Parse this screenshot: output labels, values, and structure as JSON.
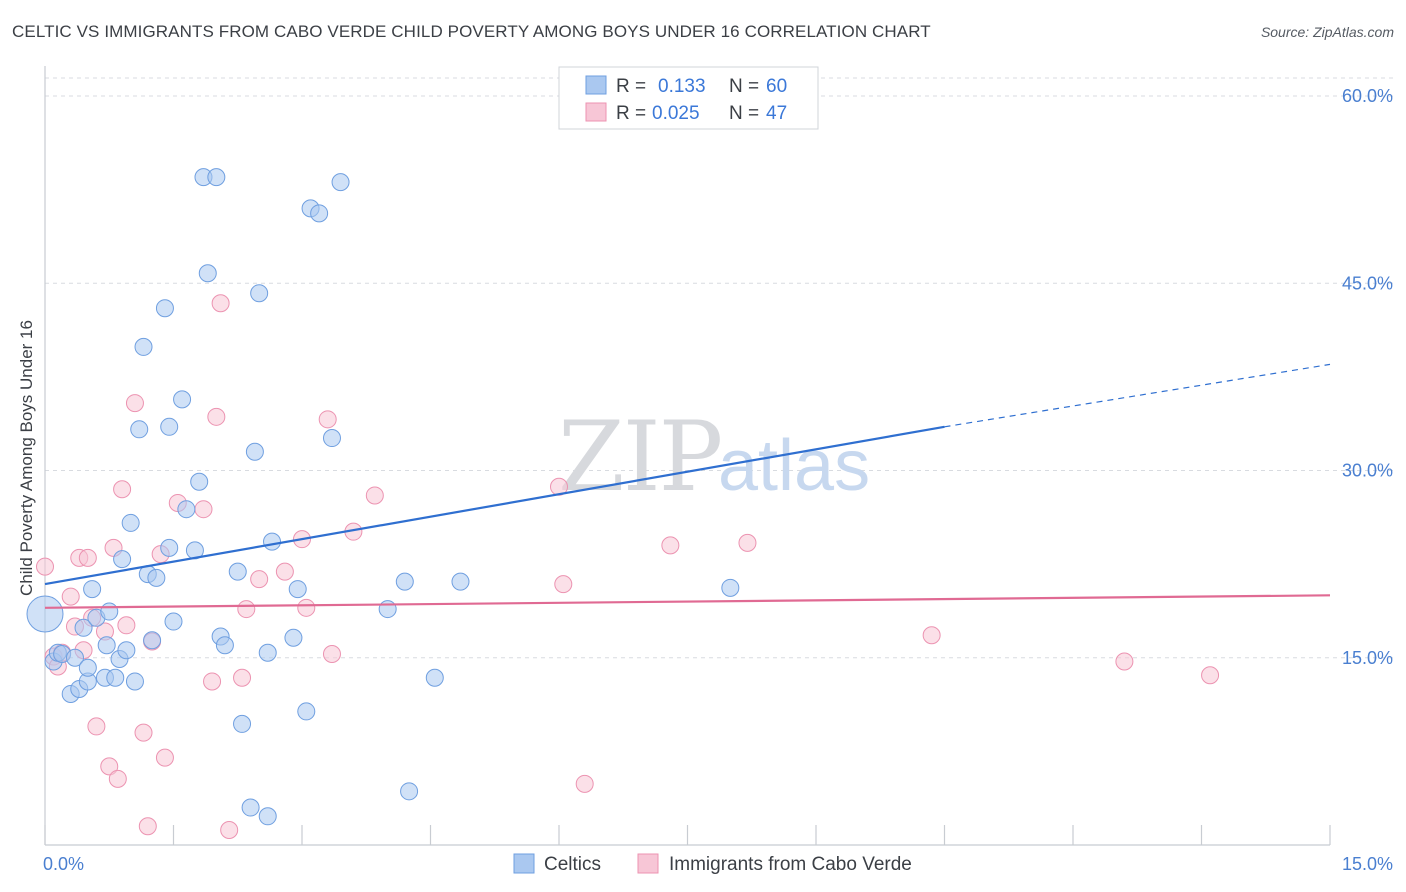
{
  "title": "CELTIC VS IMMIGRANTS FROM CABO VERDE CHILD POVERTY AMONG BOYS UNDER 16 CORRELATION CHART",
  "source": "Source: ZipAtlas.com",
  "watermark": {
    "zip": "ZIP",
    "atlas": "atlas"
  },
  "colors": {
    "celtics_fill": "#aac8f0",
    "celtics_stroke": "#6f9fe0",
    "celtics_line": "#2f6fd0",
    "cabo_fill": "#f7c6d6",
    "cabo_stroke": "#ec93b1",
    "cabo_line": "#e06a93",
    "tick_text": "#4a7fd0",
    "grid": "#d8dbe0"
  },
  "legend": {
    "r_label": "R =",
    "n_label": "N =",
    "celtics": {
      "r": "0.133",
      "n": "60"
    },
    "cabo": {
      "r": "0.025",
      "n": "47"
    }
  },
  "chart_data": {
    "type": "scatter",
    "title": "CELTIC VS IMMIGRANTS FROM CABO VERDE CHILD POVERTY AMONG BOYS UNDER 16 CORRELATION CHART",
    "xlabel": "",
    "ylabel": "Child Poverty Among Boys Under 16",
    "xlim": [
      0,
      15
    ],
    "ylim": [
      0,
      60
    ],
    "x_tick_labels": [
      "0.0%",
      "15.0%"
    ],
    "y_tick_labels": [
      "15.0%",
      "30.0%",
      "45.0%",
      "60.0%"
    ],
    "y_ticks": [
      15,
      30,
      45,
      60
    ],
    "series": [
      {
        "name": "Celtics",
        "r": 0.133,
        "n": 60,
        "trend": {
          "x0": 0,
          "y0": 20.9,
          "x1": 10.5,
          "y1": 33.5,
          "dash_to_x": 15,
          "dash_to_y": 38.5
        },
        "points": [
          [
            0.0,
            18.5,
            "big"
          ],
          [
            0.1,
            14.7
          ],
          [
            0.15,
            15.4
          ],
          [
            0.2,
            15.3
          ],
          [
            0.3,
            12.1
          ],
          [
            0.35,
            15.0
          ],
          [
            0.4,
            12.5
          ],
          [
            0.45,
            17.4
          ],
          [
            0.5,
            13.1
          ],
          [
            0.55,
            20.5
          ],
          [
            0.6,
            18.2
          ],
          [
            0.7,
            13.4
          ],
          [
            0.72,
            16.0
          ],
          [
            0.75,
            18.7
          ],
          [
            0.82,
            13.4
          ],
          [
            0.87,
            14.9
          ],
          [
            0.9,
            22.9
          ],
          [
            0.95,
            15.6
          ],
          [
            1.0,
            25.8
          ],
          [
            1.05,
            13.1
          ],
          [
            1.1,
            33.3
          ],
          [
            1.15,
            39.9
          ],
          [
            1.2,
            21.7
          ],
          [
            1.25,
            16.4
          ],
          [
            1.3,
            21.4
          ],
          [
            1.4,
            43.0
          ],
          [
            1.45,
            23.8
          ],
          [
            1.45,
            33.5
          ],
          [
            1.5,
            17.9
          ],
          [
            1.6,
            35.7
          ],
          [
            1.65,
            26.9
          ],
          [
            1.75,
            23.6
          ],
          [
            1.8,
            29.1
          ],
          [
            1.85,
            53.5
          ],
          [
            1.9,
            45.8
          ],
          [
            2.0,
            53.5
          ],
          [
            2.05,
            16.7
          ],
          [
            2.1,
            16.0
          ],
          [
            2.25,
            21.9
          ],
          [
            2.3,
            9.7
          ],
          [
            2.4,
            3.0
          ],
          [
            2.45,
            31.5
          ],
          [
            2.5,
            44.2
          ],
          [
            2.6,
            2.3
          ],
          [
            2.6,
            15.4
          ],
          [
            2.65,
            24.3
          ],
          [
            2.9,
            16.6
          ],
          [
            2.95,
            20.5
          ],
          [
            3.05,
            10.7
          ],
          [
            3.1,
            51.0
          ],
          [
            3.2,
            50.6
          ],
          [
            3.35,
            32.6
          ],
          [
            3.45,
            53.1
          ],
          [
            4.0,
            18.9
          ],
          [
            4.2,
            21.1
          ],
          [
            4.25,
            4.3
          ],
          [
            4.55,
            13.4
          ],
          [
            4.85,
            21.1
          ],
          [
            8.0,
            20.6
          ],
          [
            0.5,
            14.2
          ]
        ]
      },
      {
        "name": "Immigrants from Cabo Verde",
        "r": 0.025,
        "n": 47,
        "trend": {
          "x0": 0,
          "y0": 19.0,
          "x1": 15,
          "y1": 20.0
        },
        "points": [
          [
            0.0,
            22.3
          ],
          [
            0.1,
            15.1
          ],
          [
            0.15,
            14.3
          ],
          [
            0.2,
            15.4
          ],
          [
            0.3,
            19.9
          ],
          [
            0.35,
            17.5
          ],
          [
            0.4,
            23.0
          ],
          [
            0.45,
            15.6
          ],
          [
            0.5,
            23.0
          ],
          [
            0.55,
            18.2
          ],
          [
            0.6,
            9.5
          ],
          [
            0.7,
            17.1
          ],
          [
            0.75,
            6.3
          ],
          [
            0.8,
            23.8
          ],
          [
            0.85,
            5.3
          ],
          [
            0.9,
            28.5
          ],
          [
            0.95,
            17.6
          ],
          [
            1.05,
            35.4
          ],
          [
            1.15,
            9.0
          ],
          [
            1.2,
            1.5
          ],
          [
            1.25,
            16.3
          ],
          [
            1.35,
            23.3
          ],
          [
            1.4,
            7.0
          ],
          [
            1.55,
            27.4
          ],
          [
            1.85,
            26.9
          ],
          [
            1.95,
            13.1
          ],
          [
            2.0,
            34.3
          ],
          [
            2.05,
            43.4
          ],
          [
            2.15,
            1.2
          ],
          [
            2.3,
            13.4
          ],
          [
            2.35,
            18.9
          ],
          [
            2.5,
            21.3
          ],
          [
            2.8,
            21.9
          ],
          [
            3.0,
            24.5
          ],
          [
            3.05,
            19.0
          ],
          [
            3.3,
            34.1
          ],
          [
            3.35,
            15.3
          ],
          [
            3.6,
            25.1
          ],
          [
            3.85,
            28.0
          ],
          [
            6.0,
            28.7
          ],
          [
            6.05,
            20.9
          ],
          [
            6.3,
            4.9
          ],
          [
            7.3,
            24.0
          ],
          [
            8.2,
            24.2
          ],
          [
            10.35,
            16.8
          ],
          [
            12.6,
            14.7
          ],
          [
            13.6,
            13.6
          ]
        ]
      }
    ],
    "bottom_legend": [
      "Celtics",
      "Immigrants from Cabo Verde"
    ]
  }
}
